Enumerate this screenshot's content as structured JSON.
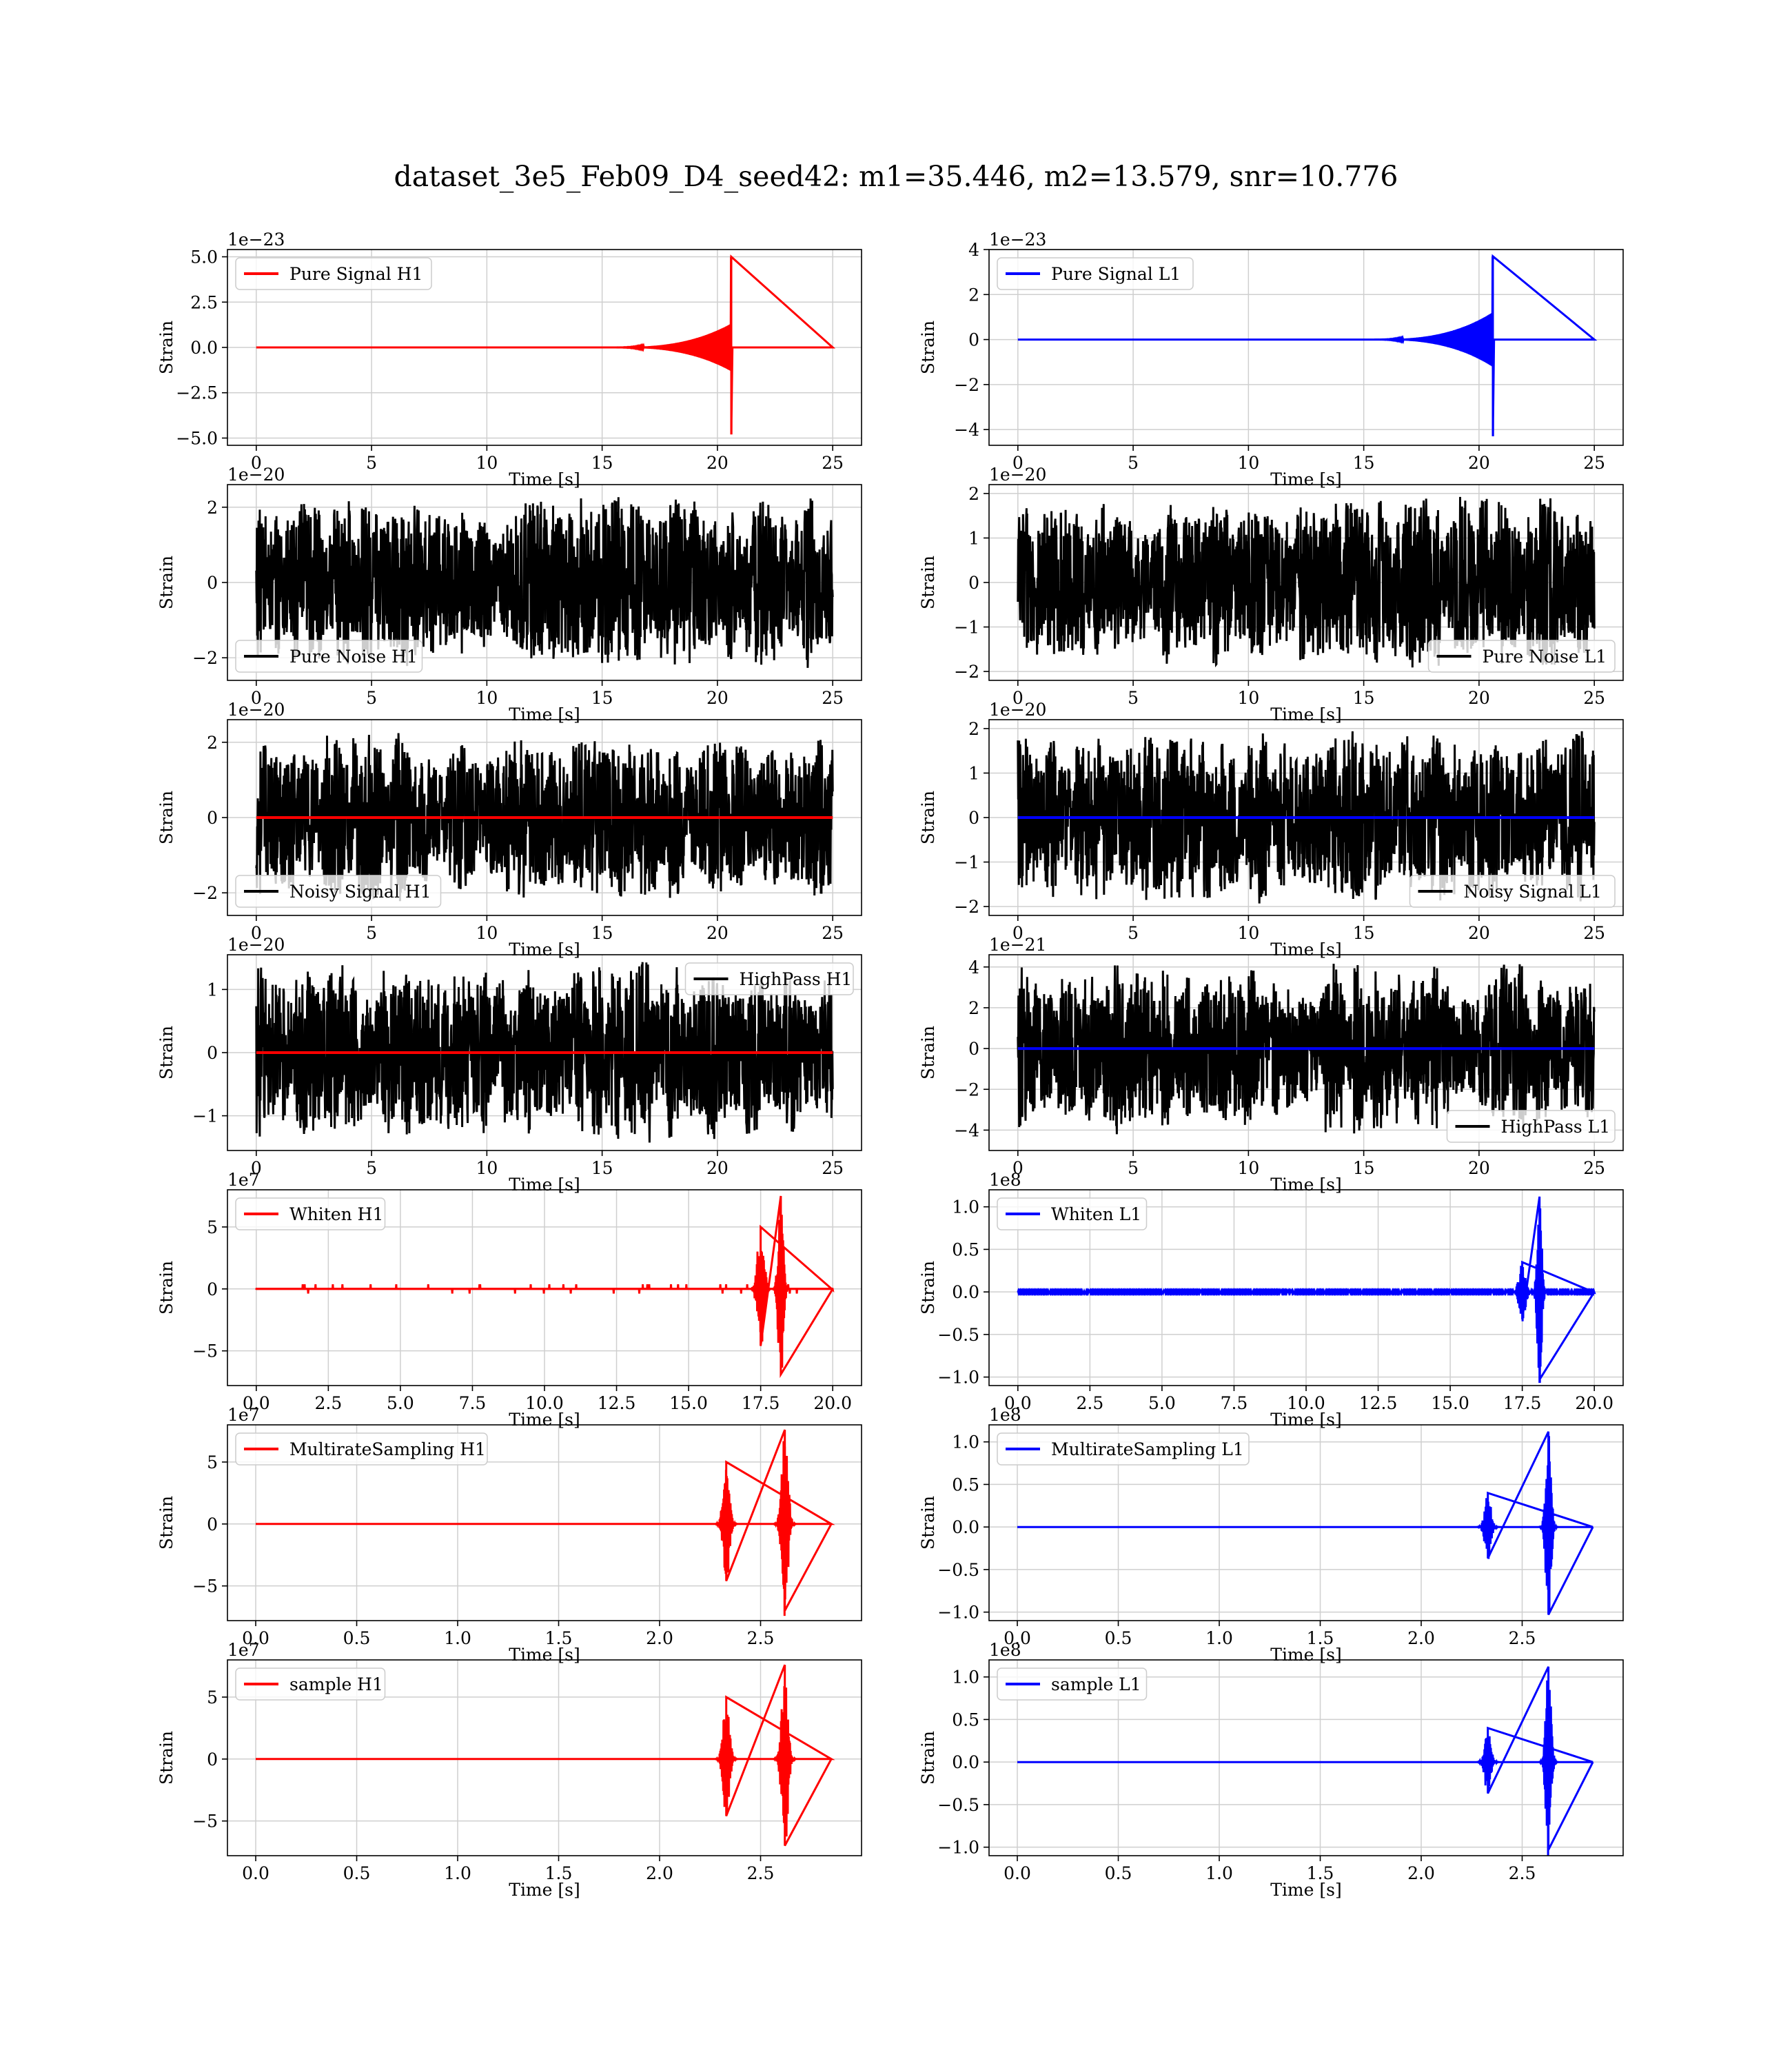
{
  "figure": {
    "title": "dataset_3e5_Feb09_D4_seed42: m1=35.446, m2=13.579, snr=10.776"
  },
  "colors": {
    "h1": "#ff0000",
    "l1": "#0000ff",
    "noise": "#000000"
  },
  "chart_data": [
    {
      "id": "pure-signal-h1",
      "type": "line",
      "kind": "chirp",
      "detector": "H1",
      "series": [
        {
          "name": "Pure Signal H1",
          "color": "#ff0000",
          "peak_time": 20.6,
          "peak_positive": 5.0,
          "peak_negative": -4.8,
          "envelope_amp": 1.3,
          "start": 15
        }
      ],
      "xlim": [
        -1.25,
        26.25
      ],
      "ylim": [
        -5.4,
        5.4
      ],
      "xticks": [
        0,
        5,
        10,
        15,
        20,
        25
      ],
      "yticks": [
        -5.0,
        -2.5,
        0.0,
        2.5,
        5.0
      ],
      "ytick_labels": [
        "−5.0",
        "−2.5",
        "0.0",
        "2.5",
        "5.0"
      ],
      "offset": "1e−23",
      "xlabel": "Time [s]",
      "ylabel": "Strain",
      "legend": "upper left",
      "grid": true
    },
    {
      "id": "pure-signal-l1",
      "type": "line",
      "kind": "chirp",
      "detector": "L1",
      "series": [
        {
          "name": "Pure Signal L1",
          "color": "#0000ff",
          "peak_time": 20.6,
          "peak_positive": 3.7,
          "peak_negative": -4.3,
          "envelope_amp": 1.2,
          "start": 15
        }
      ],
      "xlim": [
        -1.25,
        26.25
      ],
      "ylim": [
        -4.7,
        4.0
      ],
      "xticks": [
        0,
        5,
        10,
        15,
        20,
        25
      ],
      "yticks": [
        -4,
        -2,
        0,
        2,
        4
      ],
      "ytick_labels": [
        "−4",
        "−2",
        "0",
        "2",
        "4"
      ],
      "offset": "1e−23",
      "xlabel": "Time [s]",
      "ylabel": "Strain",
      "legend": "upper left",
      "grid": true
    },
    {
      "id": "pure-noise-h1",
      "type": "line",
      "kind": "noise",
      "detector": "H1",
      "series": [
        {
          "name": "Pure Noise H1",
          "color": "#000000",
          "amplitude": 2.3,
          "duration": 25
        }
      ],
      "xlim": [
        -1.25,
        26.25
      ],
      "ylim": [
        -2.6,
        2.6
      ],
      "xticks": [
        0,
        5,
        10,
        15,
        20,
        25
      ],
      "yticks": [
        -2,
        0,
        2
      ],
      "ytick_labels": [
        "−2",
        "0",
        "2"
      ],
      "offset": "1e−20",
      "xlabel": "Time [s]",
      "ylabel": "Strain",
      "legend": "lower left",
      "grid": true
    },
    {
      "id": "pure-noise-l1",
      "type": "line",
      "kind": "noise",
      "detector": "L1",
      "series": [
        {
          "name": "Pure Noise L1",
          "color": "#000000",
          "amplitude": 2.0,
          "duration": 25
        }
      ],
      "xlim": [
        -1.25,
        26.25
      ],
      "ylim": [
        -2.2,
        2.2
      ],
      "xticks": [
        0,
        5,
        10,
        15,
        20,
        25
      ],
      "yticks": [
        -2,
        -1,
        0,
        1,
        2
      ],
      "ytick_labels": [
        "−2",
        "−1",
        "0",
        "1",
        "2"
      ],
      "offset": "1e−20",
      "xlabel": "Time [s]",
      "ylabel": "Strain",
      "legend": "lower right",
      "grid": true
    },
    {
      "id": "noisy-signal-h1",
      "type": "line",
      "kind": "noise+signal",
      "detector": "H1",
      "series": [
        {
          "name": "Noisy Signal H1",
          "color": "#000000",
          "amplitude": 2.3,
          "duration": 25
        },
        {
          "name": "",
          "color": "#ff0000",
          "constant": 0
        }
      ],
      "xlim": [
        -1.25,
        26.25
      ],
      "ylim": [
        -2.6,
        2.6
      ],
      "xticks": [
        0,
        5,
        10,
        15,
        20,
        25
      ],
      "yticks": [
        -2,
        0,
        2
      ],
      "ytick_labels": [
        "−2",
        "0",
        "2"
      ],
      "offset": "1e−20",
      "xlabel": "Time [s]",
      "ylabel": "Strain",
      "legend": "lower left",
      "grid": true
    },
    {
      "id": "noisy-signal-l1",
      "type": "line",
      "kind": "noise+signal",
      "detector": "L1",
      "series": [
        {
          "name": "Noisy Signal L1",
          "color": "#000000",
          "amplitude": 2.0,
          "duration": 25
        },
        {
          "name": "",
          "color": "#0000ff",
          "constant": 0
        }
      ],
      "xlim": [
        -1.25,
        26.25
      ],
      "ylim": [
        -2.2,
        2.2
      ],
      "xticks": [
        0,
        5,
        10,
        15,
        20,
        25
      ],
      "yticks": [
        -2,
        -1,
        0,
        1,
        2
      ],
      "ytick_labels": [
        "−2",
        "−1",
        "0",
        "1",
        "2"
      ],
      "offset": "1e−20",
      "xlabel": "Time [s]",
      "ylabel": "Strain",
      "legend": "lower right",
      "grid": true
    },
    {
      "id": "highpass-h1",
      "type": "line",
      "kind": "noise+signal",
      "detector": "H1",
      "series": [
        {
          "name": "HighPass H1",
          "color": "#000000",
          "amplitude": 1.45,
          "duration": 25
        },
        {
          "name": "",
          "color": "#ff0000",
          "constant": 0
        }
      ],
      "xlim": [
        -1.25,
        26.25
      ],
      "ylim": [
        -1.55,
        1.55
      ],
      "xticks": [
        0,
        5,
        10,
        15,
        20,
        25
      ],
      "yticks": [
        -1,
        0,
        1
      ],
      "ytick_labels": [
        "−1",
        "0",
        "1"
      ],
      "offset": "1e−20",
      "xlabel": "Time [s]",
      "ylabel": "Strain",
      "legend": "upper right",
      "grid": true
    },
    {
      "id": "highpass-l1",
      "type": "line",
      "kind": "noise+signal",
      "detector": "L1",
      "series": [
        {
          "name": "HighPass L1",
          "color": "#000000",
          "amplitude": 4.3,
          "duration": 25
        },
        {
          "name": "",
          "color": "#0000ff",
          "constant": 0
        }
      ],
      "xlim": [
        -1.25,
        26.25
      ],
      "ylim": [
        -5.0,
        4.6
      ],
      "xticks": [
        0,
        5,
        10,
        15,
        20,
        25
      ],
      "yticks": [
        -4,
        -2,
        0,
        2,
        4
      ],
      "ytick_labels": [
        "−4",
        "−2",
        "0",
        "2",
        "4"
      ],
      "offset": "1e−21",
      "xlabel": "Time [s]",
      "ylabel": "Strain",
      "legend": "lower right",
      "grid": true
    },
    {
      "id": "whiten-h1",
      "type": "line",
      "kind": "bursts",
      "detector": "H1",
      "series": [
        {
          "name": "Whiten H1",
          "color": "#ff0000",
          "duration": 20,
          "bursts": [
            {
              "t": 17.5,
              "amp": 5.0,
              "w": 0.45
            },
            {
              "t": 18.2,
              "amp": 7.5,
              "w": 0.35
            }
          ],
          "base": 0.25
        }
      ],
      "xlim": [
        -1.0,
        21.0
      ],
      "ylim": [
        -7.8,
        8.0
      ],
      "xticks": [
        0.0,
        2.5,
        5.0,
        7.5,
        10.0,
        12.5,
        15.0,
        17.5,
        20.0
      ],
      "xtick_labels": [
        "0.0",
        "2.5",
        "5.0",
        "7.5",
        "10.0",
        "12.5",
        "15.0",
        "17.5",
        "20.0"
      ],
      "yticks": [
        -5,
        0,
        5
      ],
      "ytick_labels": [
        "−5",
        "0",
        "5"
      ],
      "offset": "1e7",
      "xlabel": "Time [s]",
      "ylabel": "Strain",
      "legend": "upper left",
      "grid": true
    },
    {
      "id": "whiten-l1",
      "type": "line",
      "kind": "bursts",
      "detector": "L1",
      "series": [
        {
          "name": "Whiten L1",
          "color": "#0000ff",
          "duration": 20,
          "bursts": [
            {
              "t": 17.5,
              "amp": 0.35,
              "w": 0.45
            },
            {
              "t": 18.1,
              "amp": 1.12,
              "w": 0.3
            }
          ],
          "base": 0.02
        }
      ],
      "xlim": [
        -1.0,
        21.0
      ],
      "ylim": [
        -1.1,
        1.2
      ],
      "xticks": [
        0.0,
        2.5,
        5.0,
        7.5,
        10.0,
        12.5,
        15.0,
        17.5,
        20.0
      ],
      "xtick_labels": [
        "0.0",
        "2.5",
        "5.0",
        "7.5",
        "10.0",
        "12.5",
        "15.0",
        "17.5",
        "20.0"
      ],
      "yticks": [
        -1.0,
        -0.5,
        0.0,
        0.5,
        1.0
      ],
      "ytick_labels": [
        "−1.0",
        "−0.5",
        "0.0",
        "0.5",
        "1.0"
      ],
      "offset": "1e8",
      "xlabel": "Time [s]",
      "ylabel": "Strain",
      "legend": "upper left",
      "grid": true
    },
    {
      "id": "multirate-h1",
      "type": "line",
      "kind": "bursts",
      "detector": "H1",
      "series": [
        {
          "name": "MultirateSampling H1",
          "color": "#ff0000",
          "duration": 2.85,
          "bursts": [
            {
              "t": 2.33,
              "amp": 5.0,
              "w": 0.06
            },
            {
              "t": 2.62,
              "amp": 7.6,
              "w": 0.06
            }
          ],
          "base": 0.0
        }
      ],
      "xlim": [
        -0.14,
        3.0
      ],
      "ylim": [
        -7.8,
        8.0
      ],
      "xticks": [
        0.0,
        0.5,
        1.0,
        1.5,
        2.0,
        2.5
      ],
      "xtick_labels": [
        "0.0",
        "0.5",
        "1.0",
        "1.5",
        "2.0",
        "2.5"
      ],
      "yticks": [
        -5,
        0,
        5
      ],
      "ytick_labels": [
        "−5",
        "0",
        "5"
      ],
      "offset": "1e7",
      "xlabel": "Time [s]",
      "ylabel": "Strain",
      "legend": "upper left",
      "grid": true
    },
    {
      "id": "multirate-l1",
      "type": "line",
      "kind": "bursts",
      "detector": "L1",
      "series": [
        {
          "name": "MultirateSampling L1",
          "color": "#0000ff",
          "duration": 2.85,
          "bursts": [
            {
              "t": 2.33,
              "amp": 0.4,
              "w": 0.06
            },
            {
              "t": 2.63,
              "amp": 1.12,
              "w": 0.05
            }
          ],
          "base": 0.0
        }
      ],
      "xlim": [
        -0.14,
        3.0
      ],
      "ylim": [
        -1.1,
        1.2
      ],
      "xticks": [
        0.0,
        0.5,
        1.0,
        1.5,
        2.0,
        2.5
      ],
      "xtick_labels": [
        "0.0",
        "0.5",
        "1.0",
        "1.5",
        "2.0",
        "2.5"
      ],
      "yticks": [
        -1.0,
        -0.5,
        0.0,
        0.5,
        1.0
      ],
      "ytick_labels": [
        "−1.0",
        "−0.5",
        "0.0",
        "0.5",
        "1.0"
      ],
      "offset": "1e8",
      "xlabel": "Time [s]",
      "ylabel": "Strain",
      "legend": "upper left",
      "grid": true
    },
    {
      "id": "sample-h1",
      "type": "line",
      "kind": "bursts",
      "detector": "H1",
      "series": [
        {
          "name": "sample H1",
          "color": "#ff0000",
          "duration": 2.85,
          "bursts": [
            {
              "t": 2.33,
              "amp": 5.0,
              "w": 0.06
            },
            {
              "t": 2.62,
              "amp": 7.6,
              "w": 0.06
            }
          ],
          "base": 0.0
        }
      ],
      "xlim": [
        -0.14,
        3.0
      ],
      "ylim": [
        -7.8,
        8.0
      ],
      "xticks": [
        0.0,
        0.5,
        1.0,
        1.5,
        2.0,
        2.5
      ],
      "xtick_labels": [
        "0.0",
        "0.5",
        "1.0",
        "1.5",
        "2.0",
        "2.5"
      ],
      "yticks": [
        -5,
        0,
        5
      ],
      "ytick_labels": [
        "−5",
        "0",
        "5"
      ],
      "offset": "1e7",
      "xlabel": "Time [s]",
      "ylabel": "Strain",
      "legend": "upper left",
      "grid": true
    },
    {
      "id": "sample-l1",
      "type": "line",
      "kind": "bursts",
      "detector": "L1",
      "series": [
        {
          "name": "sample L1",
          "color": "#0000ff",
          "duration": 2.85,
          "bursts": [
            {
              "t": 2.33,
              "amp": 0.4,
              "w": 0.06
            },
            {
              "t": 2.63,
              "amp": 1.12,
              "w": 0.05
            }
          ],
          "base": 0.0
        }
      ],
      "xlim": [
        -0.14,
        3.0
      ],
      "ylim": [
        -1.1,
        1.2
      ],
      "xticks": [
        0.0,
        0.5,
        1.0,
        1.5,
        2.0,
        2.5
      ],
      "xtick_labels": [
        "0.0",
        "0.5",
        "1.0",
        "1.5",
        "2.0",
        "2.5"
      ],
      "yticks": [
        -1.0,
        -0.5,
        0.0,
        0.5,
        1.0
      ],
      "ytick_labels": [
        "−1.0",
        "−0.5",
        "0.0",
        "0.5",
        "1.0"
      ],
      "offset": "1e8",
      "xlabel": "Time [s]",
      "ylabel": "Strain",
      "legend": "upper left",
      "grid": true
    }
  ]
}
